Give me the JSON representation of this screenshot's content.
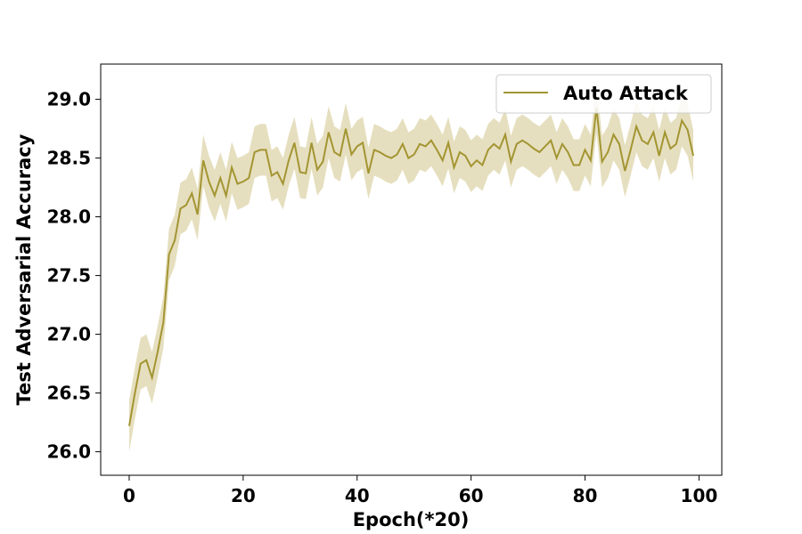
{
  "chart_data": {
    "type": "line",
    "title": "",
    "xlabel": "Epoch(*20)",
    "ylabel": "Test Adversarial Accuracy",
    "xlim": [
      -5,
      104
    ],
    "ylim": [
      25.8,
      29.3
    ],
    "xticks": [
      0,
      20,
      40,
      60,
      80,
      100
    ],
    "yticks": [
      26.0,
      26.5,
      27.0,
      27.5,
      28.0,
      28.5,
      29.0
    ],
    "grid": false,
    "legend_position": "top-right",
    "colors": {
      "line": "#a39532",
      "band": "#e6dfbf"
    },
    "series": [
      {
        "name": "Auto Attack",
        "x": [
          0,
          1,
          2,
          3,
          4,
          5,
          6,
          7,
          8,
          9,
          10,
          11,
          12,
          13,
          14,
          15,
          16,
          17,
          18,
          19,
          20,
          21,
          22,
          23,
          24,
          25,
          26,
          27,
          28,
          29,
          30,
          31,
          32,
          33,
          34,
          35,
          36,
          37,
          38,
          39,
          40,
          41,
          42,
          43,
          44,
          45,
          46,
          47,
          48,
          49,
          50,
          51,
          52,
          53,
          54,
          55,
          56,
          57,
          58,
          59,
          60,
          61,
          62,
          63,
          64,
          65,
          66,
          67,
          68,
          69,
          70,
          71,
          72,
          73,
          74,
          75,
          76,
          77,
          78,
          79,
          80,
          81,
          82,
          83,
          84,
          85,
          86,
          87,
          88,
          89,
          90,
          91,
          92,
          93,
          94,
          95,
          96,
          97,
          98,
          99
        ],
        "values": [
          26.22,
          26.5,
          26.75,
          26.78,
          26.63,
          26.85,
          27.1,
          27.68,
          27.8,
          28.07,
          28.1,
          28.2,
          28.02,
          28.48,
          28.3,
          28.18,
          28.33,
          28.18,
          28.42,
          28.28,
          28.3,
          28.33,
          28.55,
          28.57,
          28.57,
          28.35,
          28.38,
          28.28,
          28.48,
          28.63,
          28.38,
          28.37,
          28.63,
          28.4,
          28.47,
          28.72,
          28.55,
          28.52,
          28.75,
          28.53,
          28.6,
          28.63,
          28.37,
          28.57,
          28.55,
          28.52,
          28.5,
          28.53,
          28.62,
          28.5,
          28.53,
          28.62,
          28.6,
          28.65,
          28.57,
          28.48,
          28.63,
          28.42,
          28.55,
          28.52,
          28.43,
          28.48,
          28.44,
          28.57,
          28.62,
          28.58,
          28.7,
          28.47,
          28.62,
          28.65,
          28.62,
          28.58,
          28.55,
          28.6,
          28.65,
          28.5,
          28.62,
          28.55,
          28.44,
          28.44,
          28.57,
          28.48,
          28.93,
          28.47,
          28.55,
          28.7,
          28.62,
          28.39,
          28.57,
          28.77,
          28.65,
          28.62,
          28.72,
          28.52,
          28.72,
          28.58,
          28.62,
          28.82,
          28.74,
          28.52
        ],
        "band": 0.22
      }
    ]
  }
}
